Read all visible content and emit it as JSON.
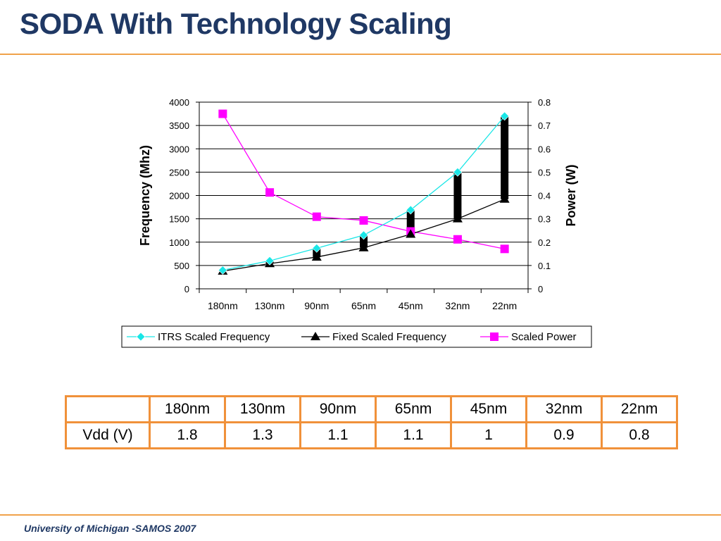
{
  "slide": {
    "title": "SODA With Technology Scaling",
    "footer": "University of Michigan -SAMOS 2007"
  },
  "colors": {
    "title": "#1f3864",
    "rule": "#f0a24a",
    "itrs": "#19e6e6",
    "fixed": "#000000",
    "power": "#ff00ff",
    "table_border": "#f0913a"
  },
  "chart_data": {
    "type": "line",
    "categories": [
      "180nm",
      "130nm",
      "90nm",
      "65nm",
      "45nm",
      "32nm",
      "22nm"
    ],
    "ylabel": "Frequency (Mhz)",
    "y2label": "Power (W)",
    "ylim": [
      0,
      4000
    ],
    "y2lim": [
      0,
      0.8
    ],
    "yticks": [
      "0",
      "500",
      "1000",
      "1500",
      "2000",
      "2500",
      "3000",
      "3500",
      "4000"
    ],
    "y2ticks": [
      "0",
      "0.1",
      "0.2",
      "0.3",
      "0.4",
      "0.5",
      "0.6",
      "0.7",
      "0.8"
    ],
    "grid": true,
    "legend_position": "bottom",
    "series": [
      {
        "name": "ITRS Scaled Frequency",
        "axis": "left",
        "marker": "diamond",
        "color": "#19e6e6",
        "values": [
          400,
          600,
          870,
          1150,
          1690,
          2500,
          3700
        ]
      },
      {
        "name": "Fixed Scaled Frequency",
        "axis": "left",
        "marker": "triangle",
        "color": "#000000",
        "values": [
          380,
          540,
          680,
          880,
          1170,
          1500,
          1920
        ]
      },
      {
        "name": "Scaled Power",
        "axis": "right",
        "marker": "square",
        "color": "#ff00ff",
        "values": [
          0.75,
          0.413,
          0.309,
          0.293,
          0.246,
          0.212,
          0.171
        ]
      }
    ]
  },
  "table": {
    "header": [
      "",
      "180nm",
      "130nm",
      "90nm",
      "65nm",
      "45nm",
      "32nm",
      "22nm"
    ],
    "rows": [
      [
        "Vdd (V)",
        "1.8",
        "1.3",
        "1.1",
        "1.1",
        "1",
        "0.9",
        "0.8"
      ]
    ]
  }
}
